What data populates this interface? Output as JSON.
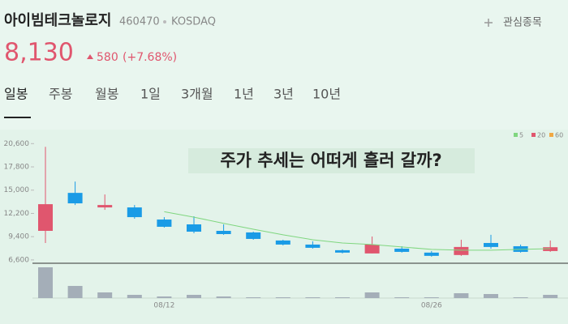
{
  "header": {
    "title": "아이빔테크놀로지",
    "code": "460470",
    "market": "KOSDAQ",
    "watch": "관심종목",
    "price": "8,130",
    "change": "580",
    "change_pct": "(+7.68%)"
  },
  "tabs": [
    "일봉",
    "주봉",
    "월봉",
    "1일",
    "3개월",
    "1년",
    "3년",
    "10년"
  ],
  "banner": "주가 추세는 어떠게 흘러 갈까?",
  "chart_data": {
    "type": "candlestick",
    "categories": [
      null,
      null,
      null,
      null,
      "08/12",
      null,
      null,
      null,
      null,
      null,
      null,
      null,
      null,
      "08/26",
      null,
      null,
      null,
      null
    ],
    "open": [
      10100,
      14670,
      12920,
      12920,
      11460,
      10880,
      10100,
      9910,
      8940,
      8450,
      7770,
      7380,
      7960,
      7480,
      7190,
      8640,
      8250,
      7670
    ],
    "high": [
      20210,
      16030,
      14480,
      13210,
      11750,
      11850,
      10880,
      10000,
      9030,
      8840,
      7870,
      9420,
      8250,
      7670,
      9030,
      9620,
      8450,
      8940
    ],
    "low": [
      8640,
      13210,
      12630,
      11560,
      10490,
      9810,
      9620,
      9030,
      8350,
      7960,
      7380,
      7380,
      7480,
      6990,
      7090,
      7960,
      7480,
      7570
    ],
    "close": [
      13310,
      13410,
      13210,
      11750,
      10590,
      10000,
      9710,
      9130,
      8450,
      8060,
      7480,
      8450,
      7570,
      7090,
      8160,
      8160,
      7570,
      8130
    ],
    "up_color": "#e0566e",
    "down_color": "#1a9be6",
    "series": [
      {
        "name": "5",
        "color": "#7fd67f",
        "values": [
          null,
          null,
          null,
          null,
          12400,
          11750,
          11000,
          10300,
          9620,
          9030,
          8640,
          8450,
          8160,
          7870,
          7770,
          7770,
          7870,
          7960
        ]
      },
      {
        "name": "20",
        "color": "#e0566e",
        "values": [
          null,
          null,
          null,
          null,
          null,
          null,
          null,
          null,
          null,
          null,
          null,
          null,
          null,
          null,
          null,
          null,
          null,
          null
        ]
      },
      {
        "name": "60",
        "color": "#f0a843",
        "values": [
          null,
          null,
          null,
          null,
          null,
          null,
          null,
          null,
          null,
          null,
          null,
          null,
          null,
          null,
          null,
          null,
          null,
          null
        ]
      }
    ],
    "volume": {
      "color": "#a4aeb8",
      "values": [
        38,
        15,
        7,
        4,
        2,
        4,
        2,
        1,
        1,
        1,
        1,
        7,
        1,
        1,
        6,
        5,
        1,
        4
      ]
    },
    "ylim": [
      6200,
      21800
    ],
    "yticks": [
      {
        "value": 20600,
        "label": "20,600"
      },
      {
        "value": 17800,
        "label": "17,800"
      },
      {
        "value": 15000,
        "label": "15,000"
      },
      {
        "value": 12200,
        "label": "12,200"
      },
      {
        "value": 9400,
        "label": "9,400"
      },
      {
        "value": 6600,
        "label": "6,600"
      }
    ]
  }
}
